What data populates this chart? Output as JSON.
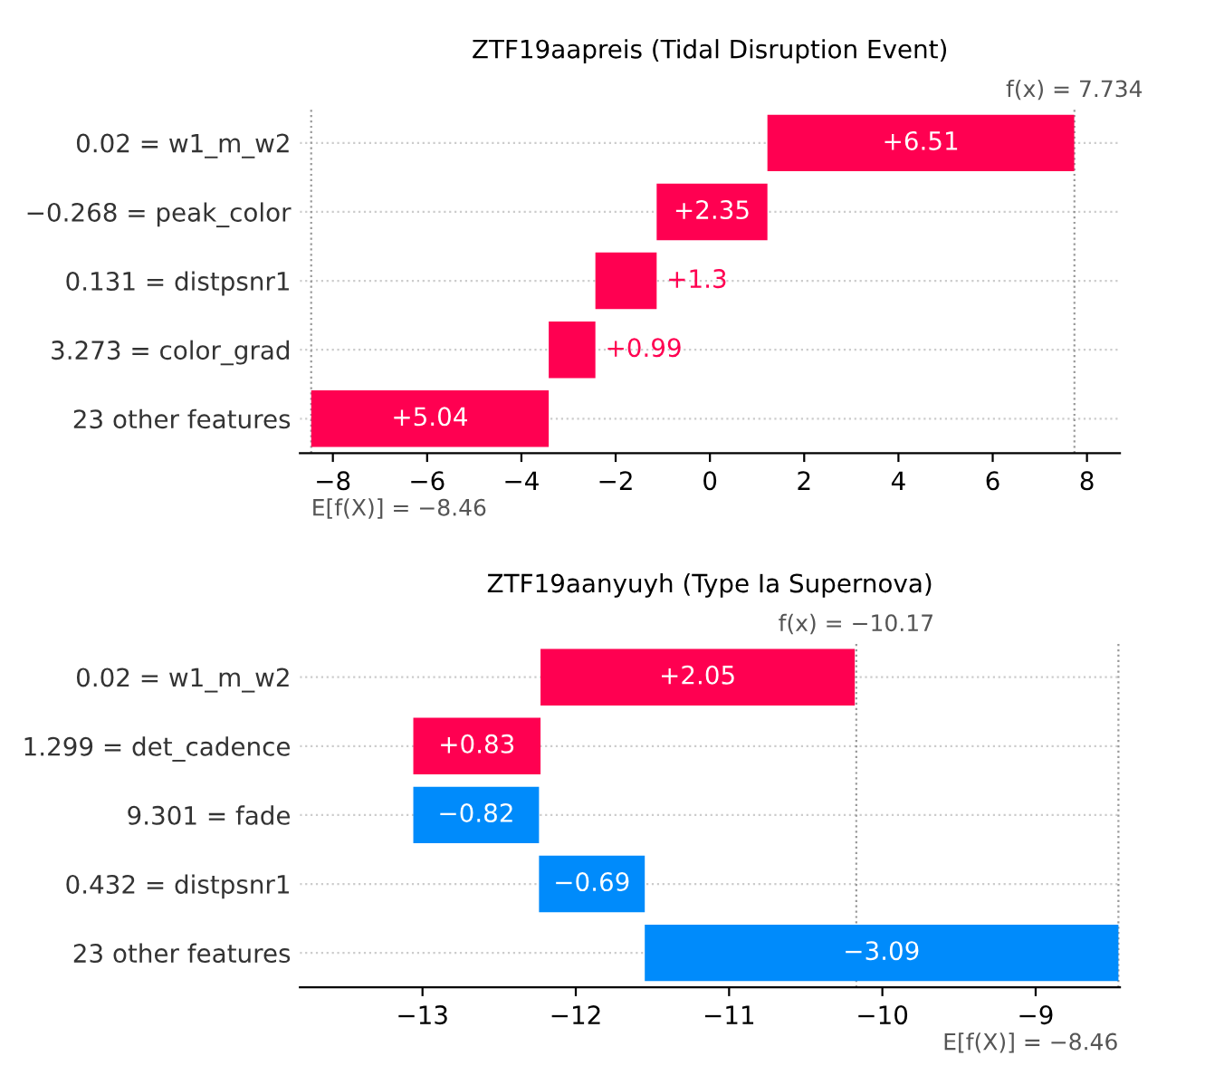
{
  "chart_data": [
    {
      "type": "bar",
      "orientation": "horizontal",
      "title": "ZTF19aapreis (Tidal Disruption Event)",
      "categories": [
        "0.02 = w1_m_w2",
        "−0.268 = peak_color",
        "0.131 = distpsnr1",
        "3.273 = color_grad",
        "23 other features"
      ],
      "values": [
        6.51,
        2.35,
        1.3,
        0.99,
        5.04
      ],
      "base": [
        1.22,
        -1.13,
        -2.43,
        -3.42,
        -8.46
      ],
      "colors": [
        "#ff0051",
        "#ff0051",
        "#ff0051",
        "#ff0051",
        "#ff0051"
      ],
      "value_labels": [
        "+6.51",
        "+2.35",
        "+1.3",
        "+0.99",
        "+5.04"
      ],
      "xlim": [
        -8.7,
        8.7
      ],
      "xticks": [
        {
          "value": -8,
          "label": "−8"
        },
        {
          "value": -6,
          "label": "−6"
        },
        {
          "value": -4,
          "label": "−4"
        },
        {
          "value": -2,
          "label": "−2"
        },
        0,
        2,
        4,
        6,
        8
      ],
      "ref_lines": [
        {
          "axis": "x",
          "value": 7.734,
          "label": "f(x) = 7.734",
          "color": "#999999",
          "line_style": "dotted"
        },
        {
          "axis": "x",
          "value": -8.46,
          "label": "E[f(X)] = −8.46",
          "color": "#999999",
          "line_style": "dotted"
        }
      ],
      "grid": "y"
    },
    {
      "type": "bar",
      "orientation": "horizontal",
      "title": "ZTF19aanyuyh (Type Ia Supernova)",
      "categories": [
        "0.02 = w1_m_w2",
        "1.299 = det_cadence",
        "9.301 = fade",
        "0.432 = distpsnr1",
        "23 other features"
      ],
      "values": [
        2.05,
        0.83,
        -0.82,
        -0.69,
        -3.09
      ],
      "base": [
        -12.23,
        -13.06,
        -12.24,
        -11.55,
        -8.46
      ],
      "colors": [
        "#ff0051",
        "#ff0051",
        "#008bfb",
        "#008bfb",
        "#008bfb"
      ],
      "value_labels": [
        "+2.05",
        "+0.83",
        "−0.82",
        "−0.69",
        "−3.09"
      ],
      "xlim": [
        -13.8,
        -8.45
      ],
      "xticks": [
        {
          "value": -13,
          "label": "−13"
        },
        {
          "value": -12,
          "label": "−12"
        },
        {
          "value": -11,
          "label": "−11"
        },
        {
          "value": -10,
          "label": "−10"
        },
        {
          "value": -9,
          "label": "−9"
        }
      ],
      "ref_lines": [
        {
          "axis": "x",
          "value": -10.17,
          "label": "f(x) = −10.17",
          "color": "#999999",
          "line_style": "dotted"
        },
        {
          "axis": "x",
          "value": -8.46,
          "label": "E[f(X)] = −8.46",
          "color": "#999999",
          "line_style": "dotted"
        }
      ],
      "grid": "y"
    }
  ]
}
